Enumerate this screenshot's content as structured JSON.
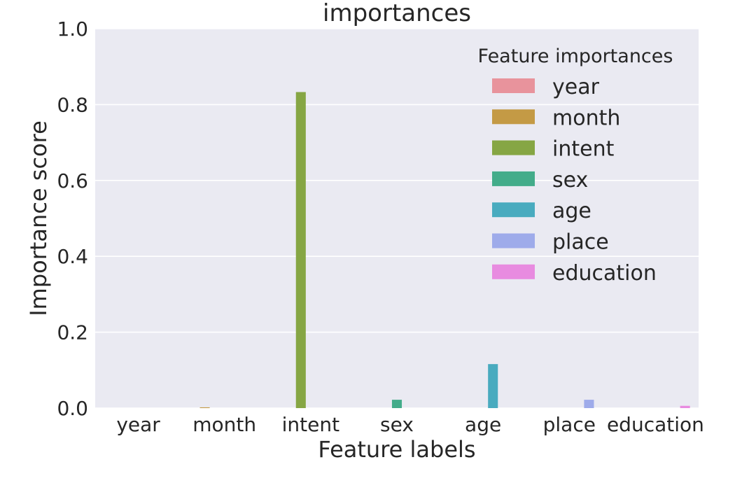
{
  "chart_data": {
    "type": "bar",
    "title": "importances",
    "xlabel": "Feature labels",
    "ylabel": "Importance score",
    "ylim": [
      0,
      1.0
    ],
    "yticks": [
      "0.0",
      "0.2",
      "0.4",
      "0.6",
      "0.8",
      "1.0"
    ],
    "categories": [
      "year",
      "month",
      "intent",
      "sex",
      "age",
      "place",
      "education"
    ],
    "series": [
      {
        "name": "year",
        "color": "#e8939c",
        "values": [
          0.0,
          null,
          null,
          null,
          null,
          null,
          null
        ]
      },
      {
        "name": "month",
        "color": "#c49a45",
        "values": [
          null,
          0.002,
          null,
          null,
          null,
          null,
          null
        ]
      },
      {
        "name": "intent",
        "color": "#86a644",
        "values": [
          null,
          null,
          0.833,
          null,
          null,
          null,
          null
        ]
      },
      {
        "name": "sex",
        "color": "#43ac8a",
        "values": [
          null,
          null,
          null,
          0.022,
          null,
          null,
          null
        ]
      },
      {
        "name": "age",
        "color": "#49abbf",
        "values": [
          null,
          null,
          null,
          null,
          0.116,
          null,
          null
        ]
      },
      {
        "name": "place",
        "color": "#9eabea",
        "values": [
          null,
          null,
          null,
          null,
          null,
          0.022,
          null
        ]
      },
      {
        "name": "education",
        "color": "#e88be0",
        "values": [
          null,
          null,
          null,
          null,
          null,
          null,
          0.006
        ]
      }
    ],
    "legend": {
      "title": "Feature importances",
      "position": "top-right"
    },
    "grid": true,
    "background": "#eaeaf2",
    "gridcolor": "#ffffff"
  }
}
